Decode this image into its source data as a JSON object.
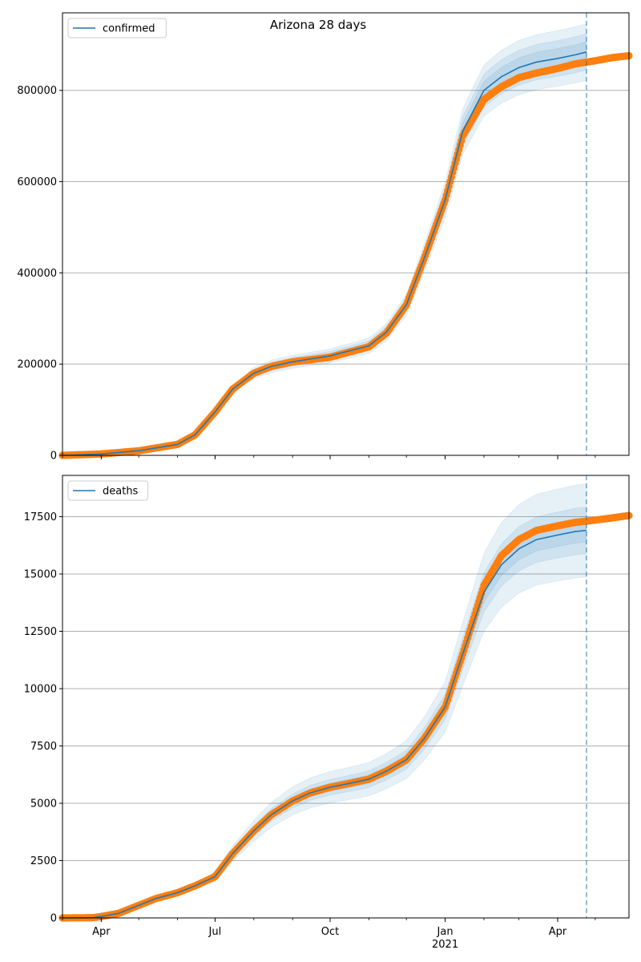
{
  "figure": {
    "title": "Arizona 28 days"
  },
  "colors": {
    "model": "#1f77b4",
    "observed": "#ff7f0e",
    "band": "#1f77b4",
    "grid": "#b0b0b0",
    "cutoff": "#1f77b4"
  },
  "chart_data": [
    {
      "type": "line",
      "legend": "confirmed",
      "legend_placement": "top-left",
      "grid": "horizontal",
      "xlim": [
        "2020-03-01",
        "2021-05-28"
      ],
      "ylim": [
        0,
        970000
      ],
      "y_ticks": [
        0,
        200000,
        400000,
        600000,
        800000
      ],
      "y_tick_labels": [
        "0",
        "200000",
        "400000",
        "600000",
        "800000"
      ],
      "x_ticks_major": [
        "2020-04-01",
        "2020-07-01",
        "2020-10-01",
        "2021-01-01",
        "2021-04-01"
      ],
      "x_tick_labels": [
        "Apr",
        "Jul",
        "Oct",
        "Jan",
        "Apr"
      ],
      "x_sublabel": "2021",
      "forecast_cutoff": "2021-04-24",
      "model_end": "2021-04-24",
      "band_start": "2020-07-01",
      "model": [
        [
          "2020-03-01",
          0
        ],
        [
          "2020-04-01",
          3000
        ],
        [
          "2020-05-01",
          10000
        ],
        [
          "2020-06-01",
          24000
        ],
        [
          "2020-06-15",
          45000
        ],
        [
          "2020-07-01",
          95000
        ],
        [
          "2020-07-15",
          145000
        ],
        [
          "2020-08-01",
          180000
        ],
        [
          "2020-08-15",
          195000
        ],
        [
          "2020-09-01",
          205000
        ],
        [
          "2020-10-01",
          218000
        ],
        [
          "2020-11-01",
          240000
        ],
        [
          "2020-11-15",
          270000
        ],
        [
          "2020-12-01",
          330000
        ],
        [
          "2020-12-15",
          430000
        ],
        [
          "2021-01-01",
          560000
        ],
        [
          "2021-01-15",
          710000
        ],
        [
          "2021-02-01",
          800000
        ],
        [
          "2021-02-15",
          830000
        ],
        [
          "2021-03-01",
          850000
        ],
        [
          "2021-03-15",
          862000
        ],
        [
          "2021-04-01",
          870000
        ],
        [
          "2021-04-15",
          878000
        ],
        [
          "2021-04-24",
          884000
        ]
      ],
      "observed": [
        [
          "2020-03-01",
          0
        ],
        [
          "2020-04-01",
          3000
        ],
        [
          "2020-05-01",
          10000
        ],
        [
          "2020-06-01",
          24000
        ],
        [
          "2020-06-15",
          45000
        ],
        [
          "2020-07-01",
          95000
        ],
        [
          "2020-07-15",
          145000
        ],
        [
          "2020-08-01",
          180000
        ],
        [
          "2020-08-15",
          195000
        ],
        [
          "2020-09-01",
          205000
        ],
        [
          "2020-10-01",
          215000
        ],
        [
          "2020-11-01",
          238000
        ],
        [
          "2020-11-15",
          268000
        ],
        [
          "2020-12-01",
          330000
        ],
        [
          "2020-12-15",
          430000
        ],
        [
          "2021-01-01",
          560000
        ],
        [
          "2021-01-15",
          700000
        ],
        [
          "2021-02-01",
          780000
        ],
        [
          "2021-02-15",
          808000
        ],
        [
          "2021-03-01",
          828000
        ],
        [
          "2021-03-15",
          838000
        ],
        [
          "2021-04-01",
          848000
        ],
        [
          "2021-04-15",
          858000
        ],
        [
          "2021-05-01",
          865000
        ],
        [
          "2021-05-15",
          872000
        ],
        [
          "2021-05-28",
          876000
        ]
      ],
      "band_widths": [
        0.025,
        0.045,
        0.07
      ]
    },
    {
      "type": "line",
      "legend": "deaths",
      "legend_placement": "top-left",
      "grid": "horizontal",
      "xlim": [
        "2020-03-01",
        "2021-05-28"
      ],
      "ylim": [
        0,
        19300
      ],
      "y_ticks": [
        0,
        2500,
        5000,
        7500,
        10000,
        12500,
        15000,
        17500
      ],
      "y_tick_labels": [
        "0",
        "2500",
        "5000",
        "7500",
        "10000",
        "12500",
        "15000",
        "17500"
      ],
      "x_ticks_major": [
        "2020-04-01",
        "2020-07-01",
        "2020-10-01",
        "2021-01-01",
        "2021-04-01"
      ],
      "x_tick_labels": [
        "Apr",
        "Jul",
        "Oct",
        "Jan",
        "Apr"
      ],
      "x_sublabel": "2021",
      "forecast_cutoff": "2021-04-24",
      "model_end": "2021-04-24",
      "band_start": "2020-06-01",
      "model": [
        [
          "2020-03-01",
          0
        ],
        [
          "2020-03-25",
          10
        ],
        [
          "2020-04-01",
          60
        ],
        [
          "2020-04-15",
          200
        ],
        [
          "2020-05-01",
          550
        ],
        [
          "2020-05-15",
          850
        ],
        [
          "2020-06-01",
          1100
        ],
        [
          "2020-06-15",
          1400
        ],
        [
          "2020-07-01",
          1800
        ],
        [
          "2020-07-15",
          2800
        ],
        [
          "2020-08-01",
          3800
        ],
        [
          "2020-08-15",
          4500
        ],
        [
          "2020-09-01",
          5100
        ],
        [
          "2020-09-15",
          5450
        ],
        [
          "2020-10-01",
          5700
        ],
        [
          "2020-10-15",
          5850
        ],
        [
          "2020-11-01",
          6050
        ],
        [
          "2020-11-15",
          6400
        ],
        [
          "2020-12-01",
          6900
        ],
        [
          "2020-12-15",
          7800
        ],
        [
          "2021-01-01",
          9200
        ],
        [
          "2021-01-15",
          11500
        ],
        [
          "2021-02-01",
          14200
        ],
        [
          "2021-02-15",
          15400
        ],
        [
          "2021-03-01",
          16100
        ],
        [
          "2021-03-15",
          16500
        ],
        [
          "2021-04-01",
          16700
        ],
        [
          "2021-04-15",
          16850
        ],
        [
          "2021-04-24",
          16900
        ]
      ],
      "observed": [
        [
          "2020-03-01",
          0
        ],
        [
          "2020-03-25",
          10
        ],
        [
          "2020-04-01",
          60
        ],
        [
          "2020-04-15",
          200
        ],
        [
          "2020-05-01",
          550
        ],
        [
          "2020-05-15",
          850
        ],
        [
          "2020-06-01",
          1100
        ],
        [
          "2020-06-15",
          1400
        ],
        [
          "2020-07-01",
          1800
        ],
        [
          "2020-07-15",
          2800
        ],
        [
          "2020-08-01",
          3800
        ],
        [
          "2020-08-15",
          4500
        ],
        [
          "2020-09-01",
          5100
        ],
        [
          "2020-09-15",
          5450
        ],
        [
          "2020-10-01",
          5700
        ],
        [
          "2020-10-15",
          5850
        ],
        [
          "2020-11-01",
          6050
        ],
        [
          "2020-11-15",
          6400
        ],
        [
          "2020-12-01",
          6900
        ],
        [
          "2020-12-15",
          7800
        ],
        [
          "2021-01-01",
          9200
        ],
        [
          "2021-01-15",
          11500
        ],
        [
          "2021-02-01",
          14500
        ],
        [
          "2021-02-15",
          15800
        ],
        [
          "2021-03-01",
          16500
        ],
        [
          "2021-03-15",
          16900
        ],
        [
          "2021-04-01",
          17100
        ],
        [
          "2021-04-15",
          17250
        ],
        [
          "2021-05-01",
          17350
        ],
        [
          "2021-05-15",
          17450
        ],
        [
          "2021-05-28",
          17550
        ]
      ],
      "band_widths": [
        0.03,
        0.06,
        0.12
      ]
    }
  ]
}
